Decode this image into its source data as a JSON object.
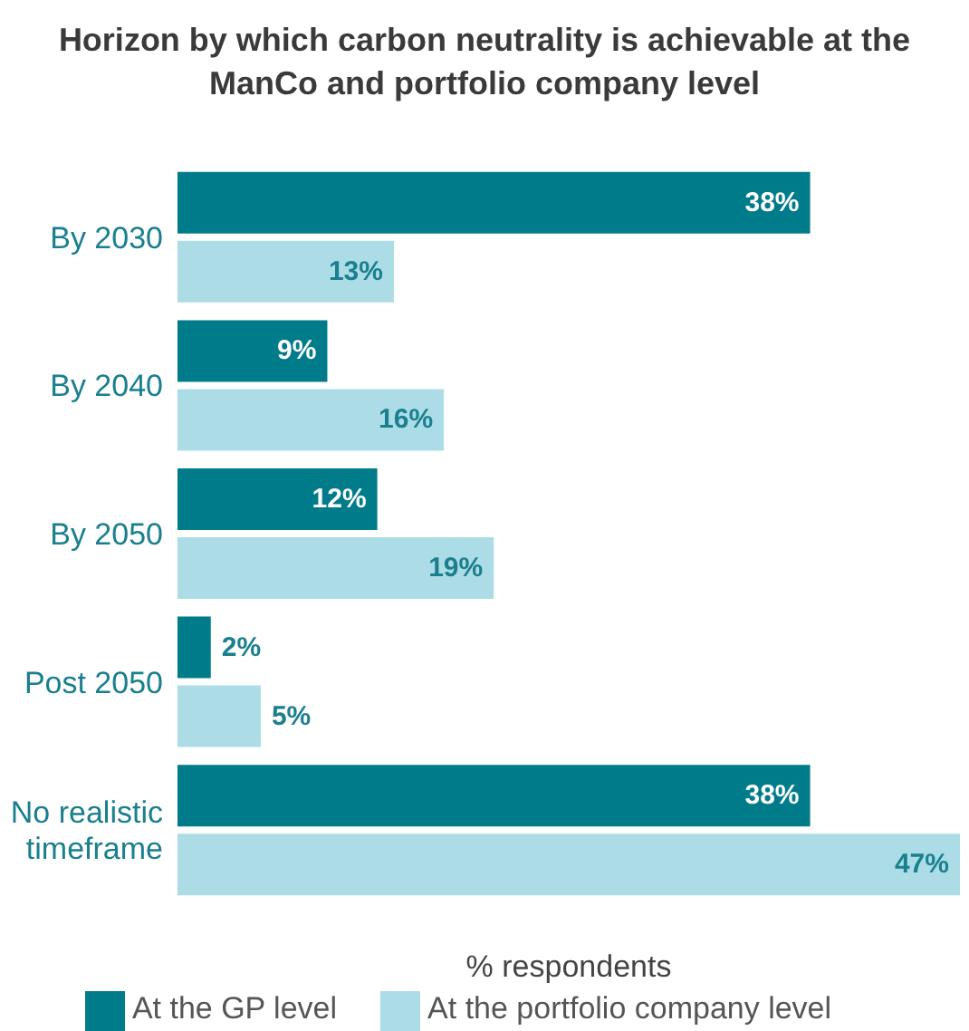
{
  "chart_data": {
    "type": "bar",
    "orientation": "horizontal",
    "title": "Horizon by which carbon neutrality is achievable at the ManCo and portfolio company level",
    "xlabel": "% respondents",
    "categories": [
      "By 2030",
      "By 2040",
      "By 2050",
      "Post 2050",
      "No realistic timeframe"
    ],
    "series": [
      {
        "name": "At the GP level",
        "color": "#007b8a",
        "values": [
          38,
          9,
          12,
          2,
          38
        ],
        "value_labels": [
          "38%",
          "9%",
          "12%",
          "2%",
          "38%"
        ]
      },
      {
        "name": "At the portfolio company level",
        "color": "#acdde6",
        "values": [
          13,
          16,
          19,
          5,
          47
        ],
        "value_labels": [
          "13%",
          "16%",
          "19%",
          "5%",
          "47%"
        ]
      }
    ],
    "xlim": [
      0,
      47
    ],
    "tick_labels": false,
    "grid": false,
    "legend": "bottom"
  }
}
